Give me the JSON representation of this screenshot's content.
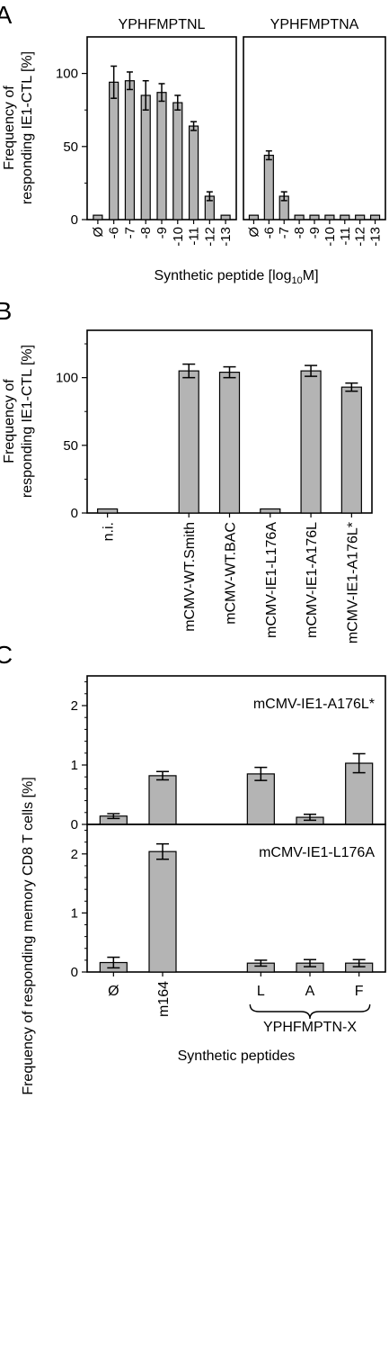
{
  "colors": {
    "bar": "#b4b4b4",
    "stroke": "#000000",
    "background": "#ffffff"
  },
  "chart_data": [
    {
      "id": "A",
      "panel_label": "A",
      "type": "bar",
      "ylabel": [
        "Frequency of",
        "responding IE1-CTL [%]"
      ],
      "xlabel": "Synthetic peptide [log",
      "xlabel_sub": "10",
      "xlabel_tail": "M]",
      "ylim": [
        0,
        125
      ],
      "yticks": [
        0,
        50,
        100
      ],
      "subplots": [
        {
          "title": "YPHFMPTNL",
          "categories": [
            "Ø",
            "-6",
            "-7",
            "-8",
            "-9",
            "-10",
            "-11",
            "-12",
            "-13"
          ],
          "values": [
            3,
            94,
            95,
            85,
            87,
            80,
            64,
            16,
            3
          ],
          "errors": [
            0,
            11,
            6,
            10,
            6,
            5,
            3,
            3,
            0
          ]
        },
        {
          "title": "YPHFMPTNA",
          "categories": [
            "Ø",
            "-6",
            "-7",
            "-8",
            "-9",
            "-10",
            "-11",
            "-12",
            "-13"
          ],
          "values": [
            3,
            44,
            16,
            3,
            3,
            3,
            3,
            3,
            3
          ],
          "errors": [
            0,
            3,
            3,
            0,
            0,
            0,
            0,
            0,
            0
          ]
        }
      ]
    },
    {
      "id": "B",
      "panel_label": "B",
      "type": "bar",
      "ylabel": [
        "Frequency of",
        "responding IE1-CTL [%]"
      ],
      "ylim": [
        0,
        135
      ],
      "yticks": [
        0,
        50,
        100
      ],
      "categories": [
        "n.i.",
        "",
        "mCMV-WT.Smith",
        "mCMV-WT.BAC",
        "mCMV-IE1-L176A",
        "mCMV-IE1-A176L",
        "mCMV-IE1-A176L*"
      ],
      "values": [
        3,
        null,
        105,
        104,
        3,
        105,
        93
      ],
      "errors": [
        0,
        null,
        5,
        4,
        0,
        4,
        3
      ]
    },
    {
      "id": "C",
      "panel_label": "C",
      "type": "bar",
      "ylabel": "Frequency of responding memory CD8 T cells [%]",
      "xlabel": "Synthetic peptides",
      "ylim": [
        0,
        2.5
      ],
      "yticks": [
        0,
        1,
        2
      ],
      "categories": [
        "Ø",
        "m164",
        "",
        "L",
        "A",
        "F"
      ],
      "bracket_label": "YPHFMPTN-X",
      "subplots": [
        {
          "title": "mCMV-IE1-A176L*",
          "values": [
            0.14,
            0.82,
            null,
            0.85,
            0.12,
            1.03
          ],
          "errors": [
            0.04,
            0.07,
            null,
            0.11,
            0.05,
            0.16
          ]
        },
        {
          "title": "mCMV-IE1-L176A",
          "values": [
            0.16,
            2.04,
            null,
            0.15,
            0.15,
            0.15
          ],
          "errors": [
            0.09,
            0.13,
            null,
            0.05,
            0.06,
            0.06
          ]
        }
      ]
    }
  ]
}
